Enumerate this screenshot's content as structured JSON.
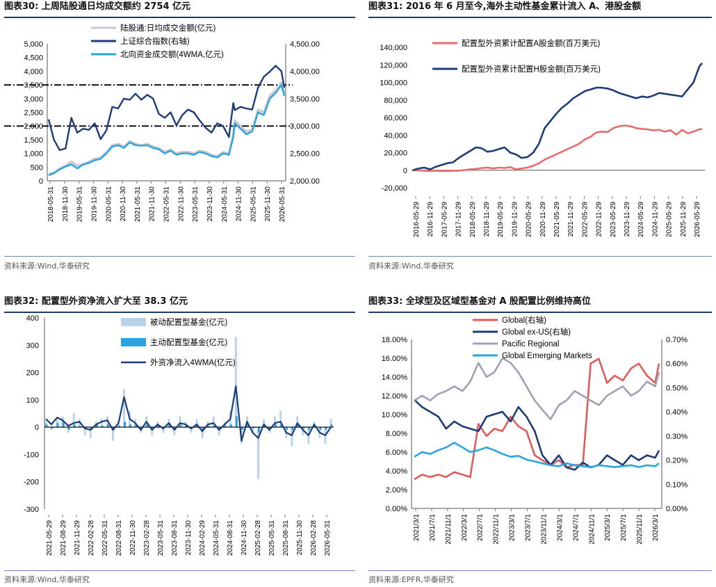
{
  "charts": [
    {
      "title": "图表30:  上周陆股通日均成交额约 2754 亿元",
      "source": "资料来源:Wind,华泰研究"
    },
    {
      "title": "图表31:  2016 年 6 月至今,海外主动性基金累计流入 A、港股金额",
      "source": "资料来源:Wind,华泰研究"
    },
    {
      "title": "图表32:  配置型外资净流入扩大至 38.3 亿元",
      "source": "资料来源:Wind,华泰研究"
    },
    {
      "title": "图表33:  全球型及区域型基金对 A 股配置比例维持高位",
      "source": "资料来源:EPFR,华泰研究"
    }
  ],
  "chart_data": [
    {
      "type": "line",
      "left_ticks": [
        "5,000",
        "4,500",
        "4,000",
        "3,500",
        "3,000",
        "2,500",
        "2,000",
        "1,500",
        "1,000",
        "500",
        "0"
      ],
      "ylim_left": [
        0,
        5000
      ],
      "right_ticks": [
        "4,500.00",
        "4,000.00",
        "3,500.00",
        "3,000.00",
        "2,500.00",
        "2,000.00"
      ],
      "ylim_right": [
        2000,
        4500
      ],
      "x_ticks": [
        "2018-05-31",
        "2018-11-30",
        "2019-05-31",
        "2019-11-30",
        "2020-05-31",
        "2020-11-30",
        "2021-05-31",
        "2021-11-30",
        "2022-05-31",
        "2022-11-30",
        "2023-05-31",
        "2023-11-30",
        "2024-05-31",
        "2024-11-30",
        "2025-05-31",
        "2025-11-30",
        "2026-05-31"
      ],
      "x": [
        2018.42,
        2018.6,
        2018.8,
        2019.0,
        2019.2,
        2019.4,
        2019.6,
        2019.8,
        2020.0,
        2020.2,
        2020.4,
        2020.6,
        2020.8,
        2021.0,
        2021.2,
        2021.4,
        2021.6,
        2021.8,
        2022.0,
        2022.2,
        2022.4,
        2022.6,
        2022.8,
        2023.0,
        2023.2,
        2023.4,
        2023.6,
        2023.8,
        2024.0,
        2024.2,
        2024.4,
        2024.6,
        2024.75,
        2024.8,
        2025.0,
        2025.2,
        2025.4,
        2025.6,
        2025.8,
        2026.0,
        2026.2,
        2026.4,
        2026.5
      ],
      "series": [
        {
          "name": "陆股通:日均成交金额(亿元)",
          "axis": "left",
          "color": "#c8c8c8",
          "values": [
            250,
            300,
            450,
            550,
            700,
            550,
            600,
            700,
            800,
            850,
            1050,
            1300,
            1350,
            1250,
            1450,
            1350,
            1300,
            1350,
            1250,
            1200,
            1050,
            1150,
            1000,
            1050,
            1050,
            1000,
            1100,
            1050,
            950,
            900,
            1050,
            1000,
            1700,
            2200,
            2000,
            1800,
            1850,
            2600,
            2500,
            3100,
            3300,
            3600,
            3200
          ]
        },
        {
          "name": "上证综合指数(右轴)",
          "axis": "right",
          "color": "#1c3b78",
          "values": [
            3120,
            2750,
            2560,
            2590,
            3150,
            2880,
            2950,
            2930,
            3050,
            2760,
            2920,
            3350,
            3320,
            3500,
            3480,
            3590,
            3480,
            3570,
            3500,
            3220,
            3150,
            3250,
            3010,
            3200,
            3300,
            3250,
            3100,
            2970,
            2880,
            3050,
            3000,
            2800,
            3420,
            3290,
            3350,
            3320,
            3300,
            3700,
            3900,
            3990,
            4100,
            4000,
            3700
          ]
        },
        {
          "name": "北向资金成交额(4WMA,亿元)",
          "axis": "left",
          "color": "#2aa4e0",
          "values": [
            200,
            280,
            420,
            520,
            600,
            450,
            600,
            650,
            750,
            800,
            1000,
            1250,
            1300,
            1200,
            1400,
            1300,
            1280,
            1300,
            1200,
            1150,
            1000,
            1100,
            950,
            1000,
            1000,
            950,
            1050,
            1000,
            900,
            850,
            1000,
            950,
            1600,
            2100,
            1900,
            1700,
            1800,
            2500,
            2400,
            3000,
            3200,
            3500,
            3100
          ]
        }
      ],
      "hlines_right": [
        3750,
        3000
      ]
    },
    {
      "type": "line",
      "y_ticks": [
        "140,000",
        "120,000",
        "100,000",
        "80,000",
        "60,000",
        "40,000",
        "20,000",
        "0",
        "-20,000"
      ],
      "ylim": [
        -20000,
        140000
      ],
      "x_ticks": [
        "2016-05-29",
        "2016-11-29",
        "2017-05-29",
        "2017-11-29",
        "2018-05-29",
        "2018-11-29",
        "2019-05-29",
        "2019-11-29",
        "2020-05-29",
        "2020-11-29",
        "2021-05-29",
        "2021-11-29",
        "2022-05-29",
        "2022-11-29",
        "2023-05-29",
        "2023-11-29",
        "2024-05-29",
        "2024-11-29",
        "2025-05-29",
        "2025-11-29",
        "2026-05-29"
      ],
      "x": [
        2016.4,
        2016.6,
        2016.8,
        2017.0,
        2017.2,
        2017.4,
        2017.6,
        2017.8,
        2018.0,
        2018.2,
        2018.4,
        2018.6,
        2018.8,
        2019.0,
        2019.2,
        2019.4,
        2019.6,
        2019.8,
        2020.0,
        2020.2,
        2020.4,
        2020.6,
        2020.8,
        2021.0,
        2021.2,
        2021.4,
        2021.6,
        2021.8,
        2022.0,
        2022.2,
        2022.4,
        2022.6,
        2022.8,
        2023.0,
        2023.2,
        2023.4,
        2023.6,
        2023.8,
        2024.0,
        2024.2,
        2024.4,
        2024.6,
        2024.8,
        2025.0,
        2025.2,
        2025.4,
        2025.6,
        2025.8,
        2026.0,
        2026.2,
        2026.4,
        2026.5
      ],
      "series": [
        {
          "name": "配置型外资累计配置A股金额(百万美元)",
          "color": "#e86a6a",
          "values": [
            0,
            -200,
            -500,
            -800,
            -500,
            -800,
            -1000,
            -700,
            -500,
            200,
            1000,
            1500,
            2500,
            3000,
            2000,
            3000,
            2500,
            3500,
            1000,
            2000,
            3000,
            5000,
            8000,
            12000,
            15000,
            18000,
            21000,
            24000,
            27000,
            30000,
            35000,
            38000,
            43000,
            44000,
            43500,
            48000,
            50000,
            51000,
            50000,
            48000,
            47000,
            46500,
            45500,
            46000,
            44000,
            45500,
            40500,
            46000,
            42000,
            44000,
            46500,
            47000
          ]
        },
        {
          "name": "配置型外资累计配置H股金额(百万美元)",
          "color": "#1c3b78",
          "values": [
            0,
            2000,
            3000,
            1000,
            4000,
            6000,
            8000,
            9000,
            14000,
            18000,
            22000,
            26000,
            25000,
            21000,
            22000,
            24000,
            26000,
            20000,
            18000,
            14000,
            15000,
            20000,
            30000,
            48000,
            56000,
            64000,
            71000,
            76000,
            82000,
            86000,
            90000,
            92000,
            94000,
            94000,
            93000,
            91000,
            88000,
            86000,
            84000,
            82000,
            84000,
            83000,
            85000,
            88000,
            87000,
            86000,
            85000,
            84000,
            92000,
            100000,
            118000,
            122000
          ]
        }
      ]
    },
    {
      "type": "bar",
      "y_ticks": [
        "400",
        "300",
        "200",
        "100",
        "0",
        "-100",
        "-200",
        "-300"
      ],
      "ylim": [
        -300,
        400
      ],
      "x_ticks": [
        "2021-05-29",
        "2021-08-29",
        "2021-11-29",
        "2022-02-28",
        "2022-05-31",
        "2022-08-31",
        "2022-11-30",
        "2023-02-28",
        "2023-05-31",
        "2023-08-31",
        "2023-11-30",
        "2024-02-29",
        "2024-05-31",
        "2024-08-31",
        "2024-11-30",
        "2025-02-28",
        "2025-05-31",
        "2025-08-31",
        "2025-11-30",
        "2026-02-28",
        "2026-05-31"
      ],
      "x": [
        2021.4,
        2021.5,
        2021.6,
        2021.7,
        2021.8,
        2021.9,
        2022.0,
        2022.1,
        2022.2,
        2022.3,
        2022.4,
        2022.5,
        2022.6,
        2022.7,
        2022.8,
        2022.9,
        2023.0,
        2023.1,
        2023.2,
        2023.3,
        2023.4,
        2023.5,
        2023.6,
        2023.7,
        2023.8,
        2023.9,
        2024.0,
        2024.1,
        2024.2,
        2024.3,
        2024.4,
        2024.5,
        2024.6,
        2024.7,
        2024.8,
        2024.9,
        2025.0,
        2025.1,
        2025.2,
        2025.3,
        2025.4,
        2025.5,
        2025.6,
        2025.7,
        2025.8,
        2025.9,
        2026.0,
        2026.1,
        2026.2,
        2026.3,
        2026.4,
        2026.5
      ],
      "series": [
        {
          "name": "被动配置型基金(亿元)",
          "color": "#b8d3ea",
          "values": [
            20,
            -10,
            30,
            40,
            -20,
            50,
            30,
            -30,
            -40,
            20,
            30,
            40,
            -50,
            20,
            140,
            60,
            30,
            -20,
            40,
            -30,
            20,
            -20,
            30,
            -30,
            40,
            20,
            -20,
            30,
            -40,
            20,
            40,
            -30,
            20,
            60,
            330,
            -60,
            40,
            -20,
            -190,
            30,
            -20,
            40,
            60,
            -40,
            -70,
            40,
            -30,
            -60,
            20,
            -40,
            -60,
            30
          ]
        },
        {
          "name": "主动配置型基金(亿元)",
          "color": "#2aa4e0",
          "values": [
            10,
            -5,
            15,
            20,
            -10,
            10,
            5,
            -5,
            -10,
            10,
            5,
            10,
            -10,
            5,
            20,
            10,
            10,
            -5,
            10,
            -5,
            5,
            -5,
            10,
            -5,
            10,
            5,
            -5,
            5,
            -10,
            5,
            5,
            -5,
            5,
            10,
            40,
            -10,
            10,
            -5,
            -20,
            10,
            -5,
            10,
            10,
            -10,
            -10,
            10,
            -5,
            -10,
            5,
            -10,
            -10,
            10
          ]
        },
        {
          "name": "外资净流入4WMA(亿元)",
          "color": "#1c3b78",
          "values": [
            30,
            10,
            35,
            25,
            5,
            15,
            20,
            -5,
            -10,
            10,
            20,
            25,
            -10,
            15,
            110,
            30,
            15,
            -10,
            20,
            -10,
            10,
            -5,
            15,
            -10,
            15,
            10,
            -5,
            10,
            -15,
            10,
            15,
            -10,
            10,
            30,
            150,
            -50,
            20,
            -20,
            -40,
            10,
            -10,
            15,
            20,
            -20,
            -30,
            15,
            -10,
            -30,
            10,
            -20,
            -30,
            0
          ]
        }
      ]
    },
    {
      "type": "line",
      "left_ticks": [
        "18.00%",
        "16.00%",
        "14.00%",
        "12.00%",
        "10.00%",
        "8.00%",
        "6.00%",
        "4.00%",
        "2.00%",
        "0.00%"
      ],
      "ylim_left": [
        0,
        18
      ],
      "right_ticks": [
        "0.70%",
        "0.60%",
        "0.50%",
        "0.40%",
        "0.30%",
        "0.20%",
        "0.10%",
        "0.00%"
      ],
      "ylim_right": [
        0,
        0.7
      ],
      "x_ticks": [
        "2021/3/1",
        "2021/7/1",
        "2021/11/1",
        "2022/3/1",
        "2022/7/1",
        "2022/11/1",
        "2023/3/1",
        "2023/7/1",
        "2023/11/1",
        "2024/3/1",
        "2024/7/1",
        "2024/11/1",
        "2025/3/1",
        "2025/7/1",
        "2025/11/1",
        "2026/3/1"
      ],
      "x": [
        2021.17,
        2021.33,
        2021.5,
        2021.67,
        2021.83,
        2022.0,
        2022.17,
        2022.33,
        2022.5,
        2022.67,
        2022.83,
        2023.0,
        2023.17,
        2023.33,
        2023.5,
        2023.67,
        2023.83,
        2024.0,
        2024.17,
        2024.33,
        2024.5,
        2024.67,
        2024.83,
        2025.0,
        2025.17,
        2025.33,
        2025.5,
        2025.67,
        2025.83,
        2026.0,
        2026.17,
        2026.25
      ],
      "series": [
        {
          "name": "Global(右轴)",
          "axis": "right",
          "color": "#e05a5a",
          "values": [
            0.12,
            0.14,
            0.13,
            0.14,
            0.13,
            0.15,
            0.14,
            0.13,
            0.35,
            0.3,
            0.33,
            0.32,
            0.38,
            0.34,
            0.32,
            0.22,
            0.2,
            0.18,
            0.2,
            0.17,
            0.18,
            0.18,
            0.6,
            0.62,
            0.52,
            0.55,
            0.53,
            0.58,
            0.6,
            0.55,
            0.52,
            0.6
          ]
        },
        {
          "name": "Global ex-US(右轴)",
          "axis": "right",
          "color": "#1c3b78",
          "values": [
            0.45,
            0.42,
            0.4,
            0.38,
            0.33,
            0.36,
            0.34,
            0.33,
            0.32,
            0.38,
            0.39,
            0.4,
            0.36,
            0.42,
            0.38,
            0.32,
            0.22,
            0.18,
            0.22,
            0.17,
            0.16,
            0.19,
            0.17,
            0.18,
            0.22,
            0.2,
            0.18,
            0.22,
            0.2,
            0.22,
            0.21,
            0.24
          ]
        },
        {
          "name": "Pacific Regional",
          "axis": "left",
          "color": "#a0a0b4",
          "values": [
            11.5,
            12.0,
            11.5,
            12.2,
            12.5,
            13.0,
            12.5,
            13.5,
            15.5,
            14.0,
            14.5,
            16.0,
            15.5,
            14.5,
            13.0,
            11.5,
            10.5,
            9.5,
            11.0,
            11.5,
            12.5,
            12.0,
            11.5,
            11.0,
            12.0,
            12.5,
            13.0,
            12.0,
            12.5,
            13.5,
            13.0,
            14.5
          ]
        },
        {
          "name": "Global Emerging Markets",
          "axis": "left",
          "color": "#2aa4e0",
          "values": [
            5.5,
            6.0,
            5.8,
            6.2,
            6.5,
            7.0,
            6.5,
            6.0,
            6.2,
            6.5,
            6.2,
            5.8,
            5.5,
            5.6,
            5.2,
            5.0,
            4.8,
            4.6,
            4.5,
            4.8,
            4.6,
            4.5,
            4.4,
            4.6,
            4.5,
            4.4,
            4.5,
            4.6,
            4.4,
            4.6,
            4.5,
            4.8
          ]
        }
      ]
    }
  ]
}
